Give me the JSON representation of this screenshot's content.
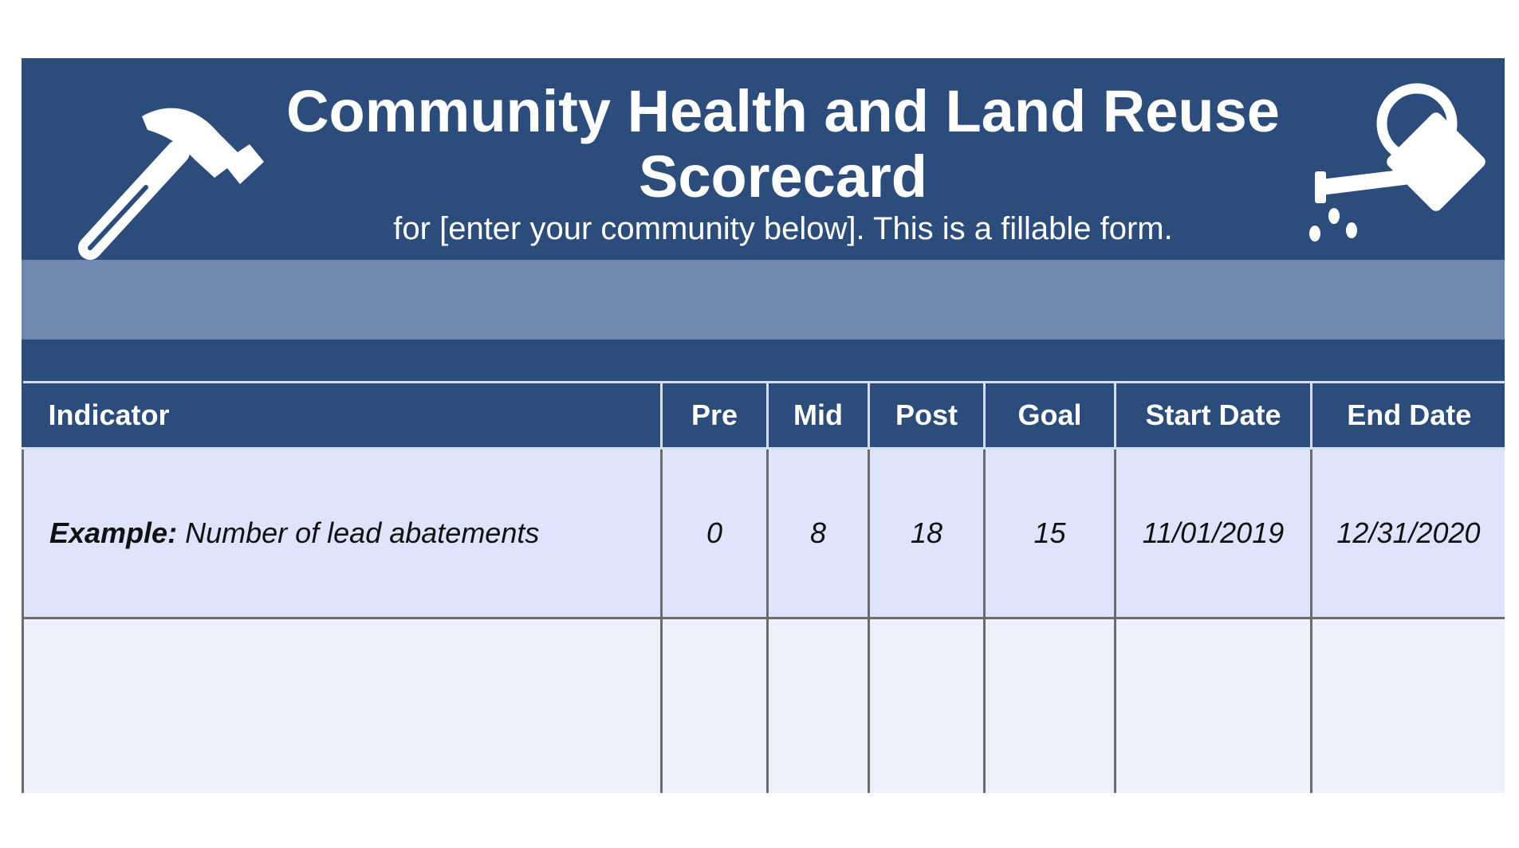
{
  "header": {
    "title": "Community Health and Land Reuse Scorecard",
    "subtitle": "for [enter your community below]. This is a fillable form.",
    "left_icon": "hammer-icon",
    "right_icon": "watering-can-icon"
  },
  "community_field": {
    "value": ""
  },
  "table": {
    "columns": [
      "Indicator",
      "Pre",
      "Mid",
      "Post",
      "Goal",
      "Start Date",
      "End Date"
    ],
    "example_row": {
      "label": "Example:",
      "indicator": "Number of lead abatements",
      "pre": "0",
      "mid": "8",
      "post": "18",
      "goal": "15",
      "start_date": "11/01/2019",
      "end_date": "12/31/2020"
    },
    "blank_row": {
      "indicator": "",
      "pre": "",
      "mid": "",
      "post": "",
      "goal": "",
      "start_date": "",
      "end_date": ""
    }
  },
  "colors": {
    "header_blue": "#2c4d7c",
    "input_band": "#7088af",
    "example_row": "#dde4fb",
    "blank_row": "#eef1fc"
  }
}
